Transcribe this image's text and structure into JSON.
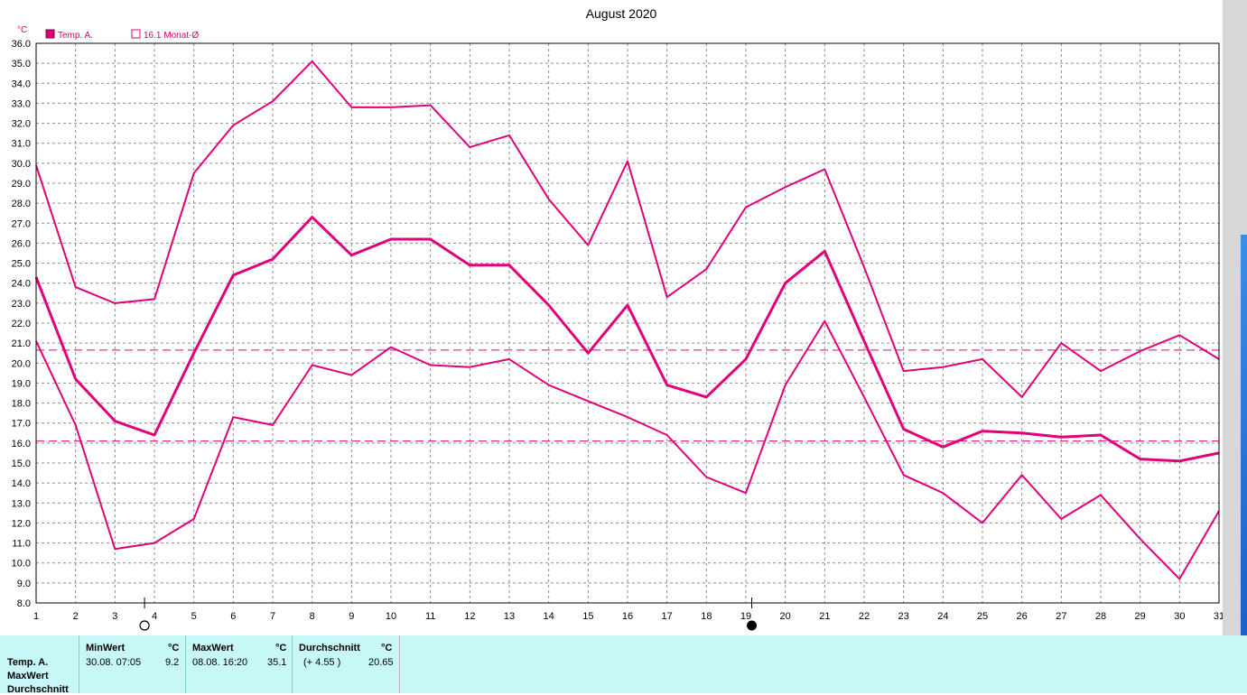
{
  "window": {
    "title": "August 2020"
  },
  "legend": {
    "unit": "°C",
    "series_label": "Temp. A.",
    "average_label": "16.1 Monat-Ø"
  },
  "colors": {
    "series": "#e0007a",
    "grid": "#8c8c8c",
    "panel": "#c8f7f7"
  },
  "chart_data": {
    "type": "line",
    "title": "August 2020",
    "ylabel": "°C",
    "xlabel": "",
    "xlim": [
      1,
      31
    ],
    "ylim": [
      8.0,
      36.0
    ],
    "x": [
      1,
      2,
      3,
      4,
      5,
      6,
      7,
      8,
      9,
      10,
      11,
      12,
      13,
      14,
      15,
      16,
      17,
      18,
      19,
      20,
      21,
      22,
      23,
      24,
      25,
      26,
      27,
      28,
      29,
      30,
      31
    ],
    "x_ticks": [
      "1",
      "2",
      "3",
      "4",
      "5",
      "6",
      "7",
      "8",
      "9",
      "10",
      "11",
      "12",
      "13",
      "14",
      "15",
      "16",
      "17",
      "18",
      "19",
      "20",
      "21",
      "22",
      "23",
      "24",
      "25",
      "26",
      "27",
      "28",
      "29",
      "30",
      "31"
    ],
    "y_ticks": [
      "8.0",
      "9.0",
      "10.0",
      "11.0",
      "12.0",
      "13.0",
      "14.0",
      "15.0",
      "16.0",
      "17.0",
      "18.0",
      "19.0",
      "20.0",
      "21.0",
      "22.0",
      "23.0",
      "24.0",
      "25.0",
      "26.0",
      "27.0",
      "28.0",
      "29.0",
      "30.0",
      "31.0",
      "32.0",
      "33.0",
      "34.0",
      "35.0",
      "36.0"
    ],
    "grid": true,
    "legend_position": "top-left",
    "series": [
      {
        "role": "max",
        "values": [
          29.9,
          23.8,
          23.0,
          23.2,
          29.5,
          31.9,
          33.1,
          35.1,
          32.8,
          32.8,
          32.9,
          30.8,
          31.4,
          28.2,
          25.9,
          30.1,
          23.3,
          24.7,
          27.8,
          28.8,
          29.7,
          24.8,
          19.6,
          19.8,
          20.2,
          18.3,
          21.0,
          19.6,
          20.6,
          21.4,
          20.2
        ]
      },
      {
        "role": "mean",
        "values": [
          24.3,
          19.2,
          17.1,
          16.4,
          20.5,
          24.4,
          25.2,
          27.3,
          25.4,
          26.2,
          26.2,
          24.9,
          24.9,
          22.9,
          20.5,
          22.9,
          18.9,
          18.3,
          20.2,
          24.0,
          25.6,
          21.1,
          16.7,
          15.8,
          16.6,
          16.5,
          16.3,
          16.4,
          15.2,
          15.1,
          15.5
        ]
      },
      {
        "role": "min",
        "values": [
          21.1,
          16.9,
          10.7,
          11.0,
          12.2,
          17.3,
          16.9,
          19.9,
          19.4,
          20.8,
          19.9,
          19.8,
          20.2,
          18.9,
          18.1,
          17.3,
          16.4,
          14.3,
          13.5,
          18.9,
          22.1,
          18.3,
          14.4,
          13.5,
          12.0,
          14.4,
          12.2,
          13.4,
          11.2,
          9.2,
          12.6
        ]
      }
    ],
    "reference_lines": [
      {
        "value": 20.65,
        "style": "dashed"
      },
      {
        "value": 16.1,
        "style": "dashed"
      }
    ],
    "moon_markers": [
      {
        "x": 3.75,
        "phase": "full"
      },
      {
        "x": 19.15,
        "phase": "new"
      }
    ]
  },
  "stats": {
    "row_labels": [
      "Temp. A.",
      "MaxWert",
      "Durchschnitt"
    ],
    "min": {
      "header": "MinWert",
      "unit": "°C",
      "datetime": "30.08.  07:05",
      "value": "9.2"
    },
    "max": {
      "header": "MaxWert",
      "unit": "°C",
      "datetime": "08.08.  16:20",
      "value": "35.1"
    },
    "avg": {
      "header": "Durchschnitt",
      "unit": "°C",
      "delta": "(+ 4.55 )",
      "value": "20.65"
    }
  }
}
